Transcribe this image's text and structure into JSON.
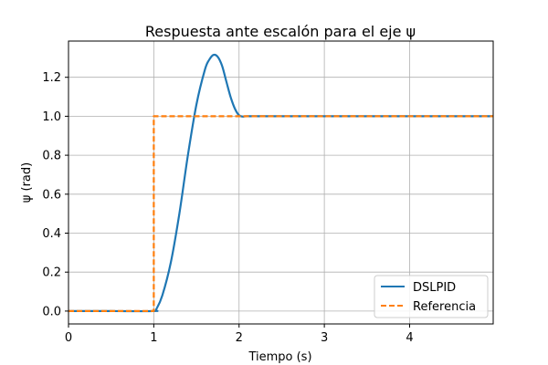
{
  "chart_data": {
    "type": "line",
    "title": "Respuesta ante escalón para el eje ψ",
    "xlabel": "Tiempo (s)",
    "ylabel": "ψ (rad)",
    "xlim": [
      0,
      4.98
    ],
    "ylim": [
      -0.066,
      1.386
    ],
    "x_ticks": [
      0,
      1,
      2,
      3,
      4
    ],
    "y_ticks": [
      0.0,
      0.2,
      0.4,
      0.6,
      0.8,
      1.0,
      1.2
    ],
    "x_tick_labels": [
      "0",
      "1",
      "2",
      "3",
      "4"
    ],
    "y_tick_labels": [
      "0.0",
      "0.2",
      "0.4",
      "0.6",
      "0.8",
      "1.0",
      "1.2"
    ],
    "grid": true,
    "legend_position": "lower-right",
    "series": [
      {
        "name": "DSLPID",
        "color": "#1f77b4",
        "style": "solid",
        "x": [
          0,
          0.5,
          1.0,
          1.03,
          1.1,
          1.2,
          1.3,
          1.4,
          1.5,
          1.6,
          1.65,
          1.7,
          1.75,
          1.8,
          1.85,
          1.9,
          1.95,
          2.0,
          2.05,
          2.1,
          2.5,
          3.0,
          3.5,
          4.0,
          4.5,
          4.98
        ],
        "y": [
          0,
          0,
          0,
          0.01,
          0.08,
          0.25,
          0.5,
          0.8,
          1.06,
          1.24,
          1.29,
          1.315,
          1.305,
          1.26,
          1.18,
          1.1,
          1.04,
          1.005,
          0.998,
          1.0,
          1.0,
          1.0,
          1.0,
          1.0,
          1.0,
          1.0
        ]
      },
      {
        "name": "Referencia",
        "color": "#ff7f0e",
        "style": "dashed",
        "x": [
          0,
          1.0,
          1.0,
          4.98
        ],
        "y": [
          0,
          0,
          1.0,
          1.0
        ]
      }
    ]
  }
}
